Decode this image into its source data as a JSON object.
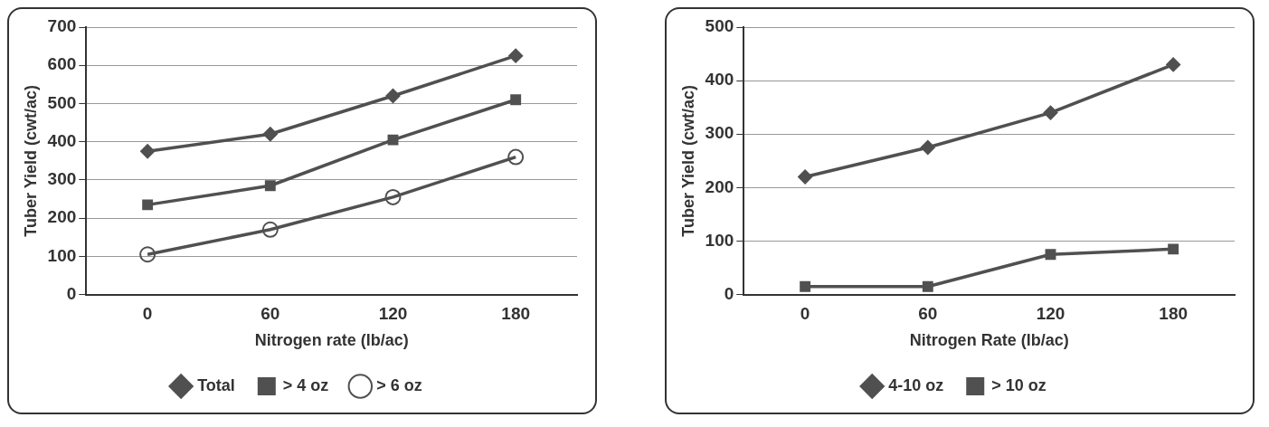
{
  "chart_data": [
    {
      "type": "line",
      "categories": [
        "0",
        "60",
        "120",
        "180"
      ],
      "xlabel": "Nitrogen rate (lb/ac)",
      "ylabel": "Tuber Yield (cwt/ac)",
      "ylim": [
        0,
        700
      ],
      "yticks": [
        0,
        100,
        200,
        300,
        400,
        500,
        600,
        700
      ],
      "grid": "y",
      "legend": "bottom",
      "series": [
        {
          "name": "Total",
          "color": "#505050",
          "marker": "diamond",
          "values": [
            375,
            420,
            520,
            625
          ]
        },
        {
          "name": "> 4 oz",
          "color": "#505050",
          "marker": "square",
          "values": [
            235,
            285,
            405,
            510
          ]
        },
        {
          "name": "> 6 oz",
          "color": "#505050",
          "marker": "circle",
          "values": [
            105,
            170,
            255,
            360
          ]
        }
      ]
    },
    {
      "type": "line",
      "categories": [
        "0",
        "60",
        "120",
        "180"
      ],
      "xlabel": "Nitrogen Rate (lb/ac)",
      "ylabel": "Tuber Yield (cwt/ac)",
      "ylim": [
        0,
        500
      ],
      "yticks": [
        0,
        100,
        200,
        300,
        400,
        500
      ],
      "grid": "y",
      "legend": "bottom",
      "series": [
        {
          "name": "4-10 oz",
          "color": "#505050",
          "marker": "diamond",
          "values": [
            220,
            275,
            340,
            430
          ]
        },
        {
          "name": "> 10 oz",
          "color": "#505050",
          "marker": "square",
          "values": [
            15,
            15,
            75,
            85
          ]
        }
      ]
    }
  ]
}
